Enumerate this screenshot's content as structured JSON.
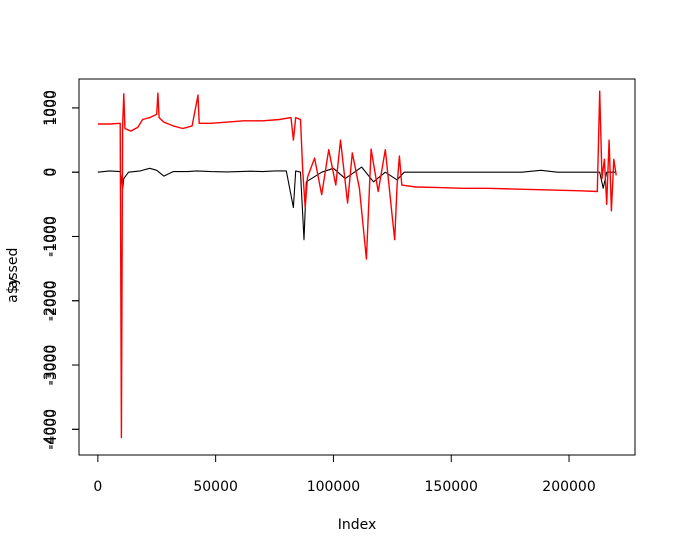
{
  "chart_data": {
    "type": "line",
    "xlabel": "Index",
    "ylabel_series1": "a$y",
    "ylabel_series2": "assed",
    "xlim": [
      -8000,
      228000
    ],
    "x_ticks": [
      0,
      50000,
      100000,
      150000,
      200000
    ],
    "x_tick_labels": [
      "0",
      "50000",
      "100000",
      "150000",
      "200000"
    ],
    "axis1": {
      "ylim": [
        -4400,
        1450
      ],
      "ticks": [
        -4000,
        -3000,
        -2000,
        -1000,
        0,
        1000
      ],
      "tick_labels": [
        "-4000",
        "-3000",
        "-2000",
        "-1000",
        "0",
        "1000"
      ]
    },
    "axis2": {
      "ylim": [
        -4400,
        1450
      ],
      "ticks": [
        -4000,
        -3000,
        -2000,
        -1000,
        0,
        1000
      ],
      "tick_labels": [
        "-4000",
        "-3000",
        "-2000",
        "-1000",
        "0",
        "1000"
      ]
    },
    "series": [
      {
        "color": "#000000",
        "points": [
          [
            0,
            0
          ],
          [
            5000,
            20
          ],
          [
            9500,
            10
          ],
          [
            10500,
            -260
          ],
          [
            11000,
            -100
          ],
          [
            13000,
            0
          ],
          [
            18000,
            20
          ],
          [
            22000,
            60
          ],
          [
            25000,
            30
          ],
          [
            28000,
            -60
          ],
          [
            32000,
            10
          ],
          [
            38000,
            10
          ],
          [
            42000,
            20
          ],
          [
            48000,
            10
          ],
          [
            55000,
            5
          ],
          [
            60000,
            10
          ],
          [
            65000,
            15
          ],
          [
            70000,
            10
          ],
          [
            75000,
            20
          ],
          [
            80000,
            20
          ],
          [
            83000,
            -550
          ],
          [
            84000,
            20
          ],
          [
            86000,
            0
          ],
          [
            87500,
            -1050
          ],
          [
            88500,
            -150
          ],
          [
            95000,
            0
          ],
          [
            100000,
            60
          ],
          [
            105000,
            -100
          ],
          [
            112000,
            80
          ],
          [
            117000,
            -150
          ],
          [
            122000,
            0
          ],
          [
            127000,
            -120
          ],
          [
            130000,
            0
          ],
          [
            140000,
            0
          ],
          [
            150000,
            0
          ],
          [
            160000,
            0
          ],
          [
            170000,
            0
          ],
          [
            180000,
            0
          ],
          [
            188000,
            30
          ],
          [
            195000,
            0
          ],
          [
            205000,
            0
          ],
          [
            213000,
            0
          ],
          [
            214500,
            -250
          ],
          [
            216000,
            0
          ],
          [
            220000,
            0
          ]
        ]
      },
      {
        "color": "#ff0000",
        "points": [
          [
            0,
            750
          ],
          [
            5000,
            750
          ],
          [
            9500,
            760
          ],
          [
            10000,
            -4130
          ],
          [
            10500,
            700
          ],
          [
            11000,
            1220
          ],
          [
            11500,
            680
          ],
          [
            14000,
            640
          ],
          [
            17000,
            700
          ],
          [
            19000,
            820
          ],
          [
            22000,
            850
          ],
          [
            25000,
            900
          ],
          [
            25500,
            1230
          ],
          [
            26000,
            850
          ],
          [
            28000,
            780
          ],
          [
            32000,
            720
          ],
          [
            36000,
            680
          ],
          [
            40000,
            720
          ],
          [
            42500,
            1200
          ],
          [
            43000,
            760
          ],
          [
            48000,
            760
          ],
          [
            55000,
            780
          ],
          [
            62000,
            800
          ],
          [
            70000,
            800
          ],
          [
            77000,
            820
          ],
          [
            82000,
            850
          ],
          [
            83000,
            500
          ],
          [
            84000,
            850
          ],
          [
            86000,
            820
          ],
          [
            87000,
            0
          ],
          [
            88000,
            -550
          ],
          [
            89000,
            -80
          ],
          [
            92000,
            220
          ],
          [
            95000,
            -350
          ],
          [
            98000,
            350
          ],
          [
            101000,
            -200
          ],
          [
            103000,
            500
          ],
          [
            106000,
            -480
          ],
          [
            108000,
            300
          ],
          [
            111000,
            -250
          ],
          [
            114000,
            -1350
          ],
          [
            116000,
            360
          ],
          [
            119000,
            -300
          ],
          [
            122000,
            350
          ],
          [
            125000,
            -700
          ],
          [
            126000,
            -1050
          ],
          [
            127000,
            -200
          ],
          [
            128000,
            250
          ],
          [
            129000,
            -200
          ],
          [
            135000,
            -230
          ],
          [
            145000,
            -240
          ],
          [
            155000,
            -250
          ],
          [
            165000,
            -250
          ],
          [
            175000,
            -260
          ],
          [
            185000,
            -270
          ],
          [
            195000,
            -280
          ],
          [
            205000,
            -290
          ],
          [
            212000,
            -300
          ],
          [
            213000,
            1260
          ],
          [
            214000,
            -100
          ],
          [
            215000,
            200
          ],
          [
            216000,
            -500
          ],
          [
            217000,
            500
          ],
          [
            218000,
            -600
          ],
          [
            219000,
            200
          ],
          [
            220000,
            -50
          ]
        ]
      }
    ]
  }
}
